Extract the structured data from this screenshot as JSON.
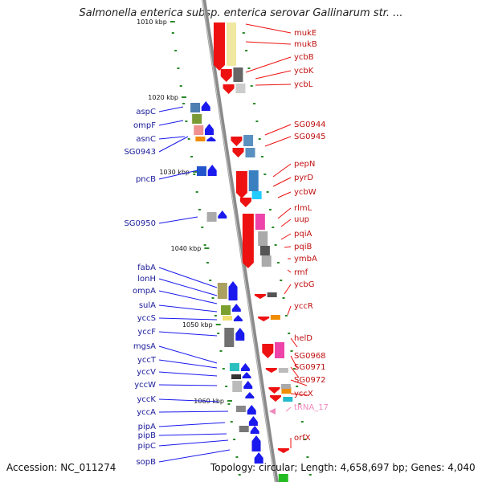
{
  "title": "Salmonella enterica subsp. enterica serovar Gallinarum str. ...",
  "footer": {
    "accession": "Accession: NC_011274",
    "topology": "Topology: circular; Length: 4,658,697 bp; Genes: 4,040"
  },
  "colors": {
    "forward": "#1a1aee",
    "reverse": "#ee1111",
    "trna": "#ee88bb",
    "backbone": "#888888"
  },
  "scale_labels": [
    "1010 kbp",
    "1020 kbp",
    "1030 kbp",
    "1040 kbp",
    "1050 kbp",
    "1060 kbp"
  ],
  "left_genes": [
    "aspC",
    "ompF",
    "asnC",
    "SG0943",
    "pncB",
    "SG0950",
    "fabA",
    "lonH",
    "ompA",
    "sulA",
    "yccS",
    "yccF",
    "mgsA",
    "yccT",
    "yccV",
    "yccW",
    "yccK",
    "yccA",
    "pipA",
    "pipB",
    "pipC",
    "sopB"
  ],
  "right_genes": [
    "mukE",
    "mukB",
    "ycbB",
    "ycbK",
    "ycbL",
    "SG0944",
    "SG0945",
    "pepN",
    "pyrD",
    "ycbW",
    "rlmL",
    "uup",
    "pqiA",
    "pqiB",
    "ymbA",
    "rmf",
    "ycbG",
    "yccR",
    "helD",
    "SG0968",
    "SG0971",
    "SG0972",
    "yccX",
    "tRNA_17",
    "orfX"
  ]
}
